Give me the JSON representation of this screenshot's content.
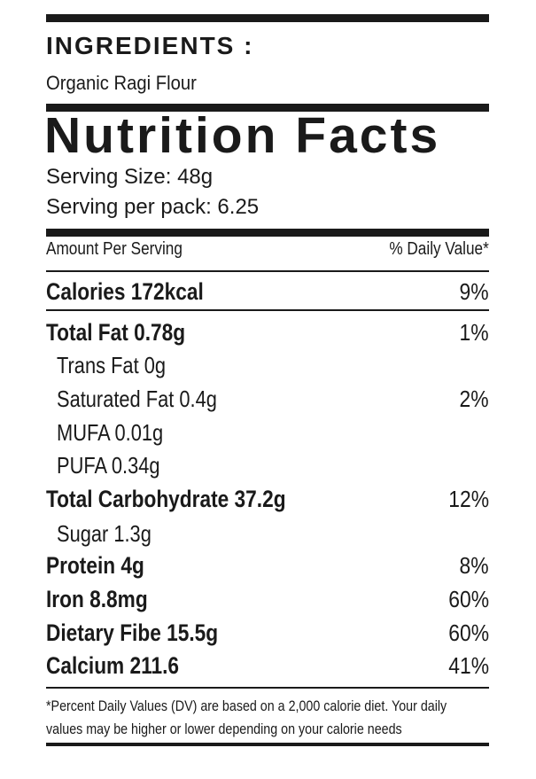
{
  "ingredients": {
    "title": "INGREDIENTS :",
    "text": "Organic Ragi Flour"
  },
  "nutrition": {
    "title": "Nutrition Facts",
    "serving_size": "Serving Size: 48g",
    "serving_per_pack": "Serving per pack: 6.25",
    "amount_header": "Amount Per Serving",
    "dv_header": "% Daily Value*",
    "rows": [
      {
        "name": "Calories  172kcal",
        "dv": "9%"
      },
      {
        "name": "Total Fat  0.78g",
        "dv": "1%"
      },
      {
        "name": "Trans Fat  0g",
        "dv": ""
      },
      {
        "name": "Saturated Fat  0.4g",
        "dv": "2%"
      },
      {
        "name": "MUFA 0.01g",
        "dv": ""
      },
      {
        "name": "PUFA 0.34g",
        "dv": ""
      },
      {
        "name": "Total Carbohydrate  37.2g",
        "dv": "12%"
      },
      {
        "name": "Sugar  1.3g",
        "dv": ""
      },
      {
        "name": "Protein  4g",
        "dv": "8%"
      },
      {
        "name": "Iron  8.8mg",
        "dv": "60%"
      },
      {
        "name": "Dietary Fibe 15.5g",
        "dv": "60%"
      },
      {
        "name": "Calcium  211.6",
        "dv": "41%"
      }
    ],
    "footnote_line1": "*Percent Daily Values (DV) are based on a 2,000 calorie diet. Your daily",
    "footnote_line2": "values may  be higher or lower depending on your calorie needs"
  }
}
